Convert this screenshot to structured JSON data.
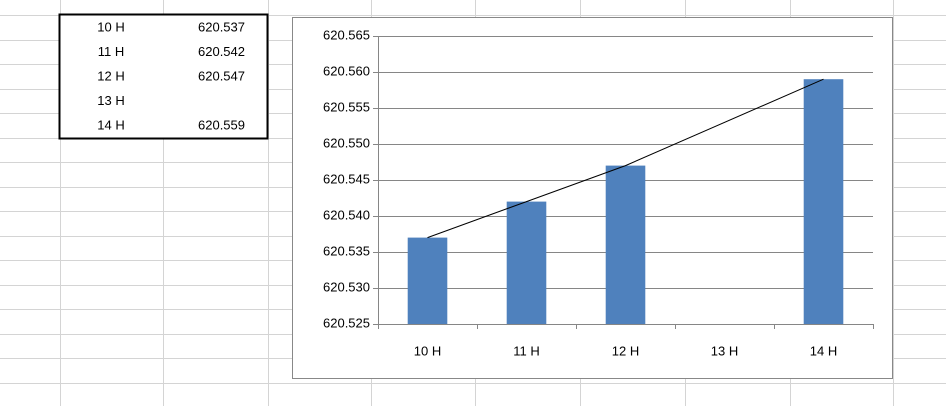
{
  "table": {
    "rows": [
      [
        "10 H",
        620.537
      ],
      [
        "11 H",
        620.542
      ],
      [
        "12 H",
        620.547
      ],
      [
        "13 H"
      ],
      [
        "14 H",
        620.559
      ]
    ]
  },
  "chart_data": {
    "type": "bar",
    "categories": [
      "10 H",
      "11 H",
      "12 H",
      "13 H",
      "14 H"
    ],
    "values": [
      620.537,
      620.542,
      620.547,
      null,
      620.559
    ],
    "color": "#4f81bd",
    "ylim": [
      620.525,
      620.565
    ],
    "yticks": [
      620.525,
      {
        "value": 620.53,
        "label": "620.530"
      },
      620.535,
      {
        "value": 620.54,
        "label": "620.540"
      },
      620.545,
      {
        "value": 620.55,
        "label": "620.550"
      },
      620.555,
      {
        "value": 620.56,
        "label": "620.560"
      },
      620.565
    ],
    "grid": true,
    "trendline": true
  }
}
